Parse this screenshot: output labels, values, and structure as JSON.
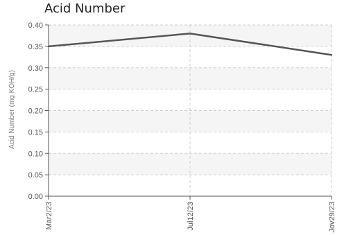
{
  "chart_data": {
    "type": "line",
    "title": "Acid Number",
    "xlabel": "",
    "ylabel": "Acid Number (mg KOH/g)",
    "categories": [
      "Mar2/23",
      "Jul12/23",
      "Jov29/23"
    ],
    "series": [
      {
        "values": [
          0.35,
          0.38,
          0.33
        ]
      }
    ],
    "ylim": [
      0.0,
      0.4
    ],
    "yticks": [
      "0.00",
      "0.05",
      "0.10",
      "0.15",
      "0.20",
      "0.25",
      "0.30",
      "0.35",
      "0.40"
    ],
    "grid": true,
    "line_color": "#555555",
    "band_color": "#f5f5f5"
  }
}
